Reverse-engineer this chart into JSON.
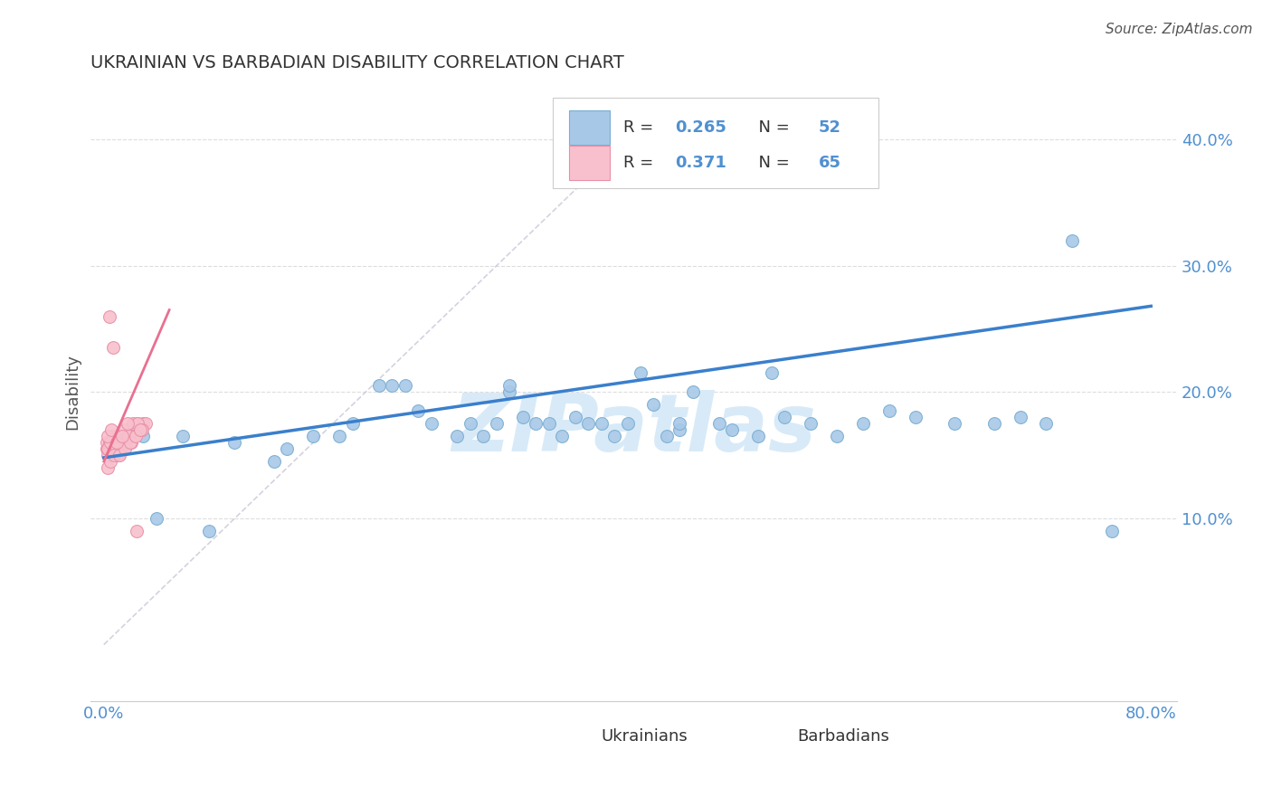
{
  "title": "UKRAINIAN VS BARBADIAN DISABILITY CORRELATION CHART",
  "source": "Source: ZipAtlas.com",
  "ylabel": "Disability",
  "ytick_vals": [
    0.1,
    0.2,
    0.3,
    0.4
  ],
  "ytick_labels": [
    "10.0%",
    "20.0%",
    "30.0%",
    "40.0%"
  ],
  "xtick_labels": [
    "0.0%",
    "",
    "",
    "",
    "80.0%"
  ],
  "xlim": [
    -0.01,
    0.82
  ],
  "ylim": [
    -0.045,
    0.445
  ],
  "legend_blue_r": "R = 0.265",
  "legend_blue_n": "N = 52",
  "legend_pink_r": "R = 0.371",
  "legend_pink_n": "N = 65",
  "legend_label_blue": "Ukrainians",
  "legend_label_pink": "Barbadians",
  "blue_scatter_color": "#a8c8e8",
  "blue_edge_color": "#7aaed0",
  "pink_scatter_color": "#f8c0cc",
  "pink_edge_color": "#e890a8",
  "blue_line_color": "#3a7fcc",
  "pink_line_color": "#e87090",
  "dashed_line_color": "#c8c8d8",
  "watermark": "ZIPatlas",
  "watermark_color": "#d8eaf8",
  "grid_color": "#dddddd",
  "tick_label_color": "#5090d0",
  "title_color": "#333333",
  "source_color": "#555555",
  "ylabel_color": "#555555",
  "blue_line_x0": 0.0,
  "blue_line_x1": 0.8,
  "blue_line_y0": 0.148,
  "blue_line_y1": 0.268,
  "pink_line_x0": 0.0,
  "pink_line_x1": 0.05,
  "pink_line_y0": 0.145,
  "pink_line_y1": 0.265,
  "blue_x": [
    0.04,
    0.08,
    0.13,
    0.16,
    0.19,
    0.21,
    0.22,
    0.24,
    0.25,
    0.27,
    0.28,
    0.29,
    0.3,
    0.31,
    0.31,
    0.32,
    0.33,
    0.35,
    0.36,
    0.37,
    0.38,
    0.39,
    0.4,
    0.42,
    0.43,
    0.44,
    0.45,
    0.47,
    0.48,
    0.5,
    0.52,
    0.54,
    0.56,
    0.58,
    0.6,
    0.62,
    0.65,
    0.68,
    0.7,
    0.72,
    0.74,
    0.03,
    0.06,
    0.1,
    0.14,
    0.18,
    0.23,
    0.34,
    0.41,
    0.51,
    0.77,
    0.44
  ],
  "blue_y": [
    0.1,
    0.09,
    0.145,
    0.165,
    0.175,
    0.205,
    0.205,
    0.185,
    0.175,
    0.165,
    0.175,
    0.165,
    0.175,
    0.2,
    0.205,
    0.18,
    0.175,
    0.165,
    0.18,
    0.175,
    0.175,
    0.165,
    0.175,
    0.19,
    0.165,
    0.17,
    0.2,
    0.175,
    0.17,
    0.165,
    0.18,
    0.175,
    0.165,
    0.175,
    0.185,
    0.18,
    0.175,
    0.175,
    0.18,
    0.175,
    0.32,
    0.165,
    0.165,
    0.16,
    0.155,
    0.165,
    0.205,
    0.175,
    0.215,
    0.215,
    0.09,
    0.175
  ],
  "pink_x": [
    0.002,
    0.002,
    0.003,
    0.003,
    0.004,
    0.004,
    0.005,
    0.005,
    0.006,
    0.006,
    0.007,
    0.007,
    0.008,
    0.008,
    0.009,
    0.009,
    0.01,
    0.01,
    0.011,
    0.011,
    0.012,
    0.012,
    0.013,
    0.014,
    0.015,
    0.015,
    0.016,
    0.017,
    0.018,
    0.019,
    0.02,
    0.021,
    0.022,
    0.023,
    0.025,
    0.026,
    0.028,
    0.03,
    0.032,
    0.003,
    0.005,
    0.007,
    0.01,
    0.013,
    0.016,
    0.019,
    0.022,
    0.026,
    0.029,
    0.003,
    0.005,
    0.008,
    0.012,
    0.016,
    0.02,
    0.024,
    0.028,
    0.003,
    0.006,
    0.01,
    0.014,
    0.018,
    0.004,
    0.007,
    0.025
  ],
  "pink_y": [
    0.155,
    0.16,
    0.15,
    0.155,
    0.155,
    0.16,
    0.155,
    0.16,
    0.155,
    0.16,
    0.15,
    0.155,
    0.155,
    0.16,
    0.155,
    0.16,
    0.155,
    0.16,
    0.15,
    0.155,
    0.155,
    0.16,
    0.155,
    0.155,
    0.155,
    0.165,
    0.16,
    0.16,
    0.165,
    0.165,
    0.165,
    0.16,
    0.165,
    0.165,
    0.17,
    0.175,
    0.17,
    0.175,
    0.175,
    0.155,
    0.16,
    0.165,
    0.155,
    0.165,
    0.17,
    0.165,
    0.175,
    0.175,
    0.17,
    0.14,
    0.145,
    0.15,
    0.15,
    0.155,
    0.16,
    0.165,
    0.17,
    0.165,
    0.17,
    0.16,
    0.165,
    0.175,
    0.26,
    0.235,
    0.09
  ]
}
